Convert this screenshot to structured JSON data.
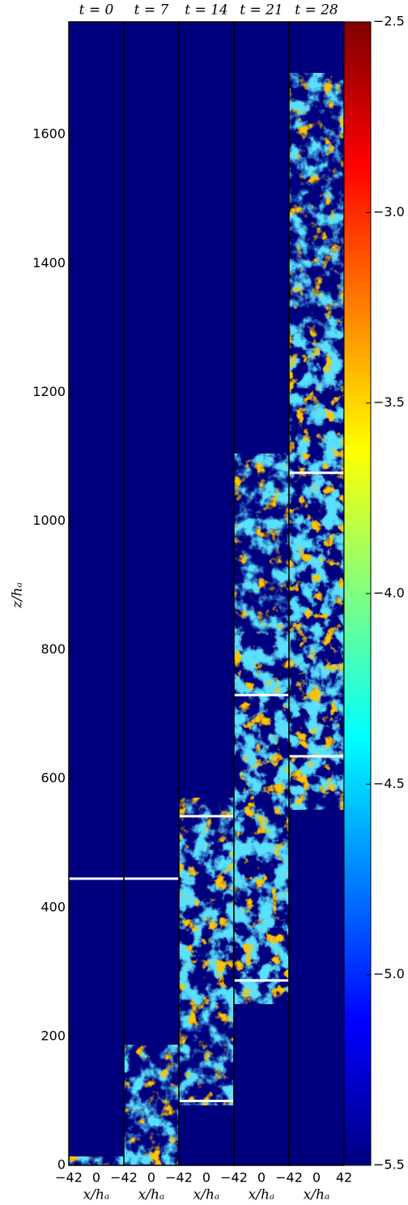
{
  "chart_data": {
    "type": "heatmap-panels",
    "ylabel": "z/hₐ",
    "ylim": [
      0,
      1775
    ],
    "yticks": [
      0,
      200,
      400,
      600,
      800,
      1000,
      1200,
      1400,
      1600
    ],
    "panels": [
      {
        "title": "t = 0",
        "xlabel": "x/hₐ",
        "xlim": [
          -42,
          42
        ],
        "xticks": [
          {
            "value": -42,
            "label": "−42"
          },
          0
        ],
        "markers": [
          445
        ]
      },
      {
        "title": "t = 7",
        "xlabel": "x/hₐ",
        "xlim": [
          -42,
          42
        ],
        "xticks": [
          {
            "value": -42,
            "label": "−42"
          },
          0
        ],
        "markers": [
          445
        ]
      },
      {
        "title": "t = 14",
        "xlabel": "x/hₐ",
        "xlim": [
          -42,
          42
        ],
        "xticks": [
          {
            "value": -42,
            "label": "−42"
          },
          0
        ],
        "markers": [
          542,
          100
        ]
      },
      {
        "title": "t = 21",
        "xlabel": "x/hₐ",
        "xlim": [
          -42,
          42
        ],
        "xticks": [
          {
            "value": -42,
            "label": "−42"
          },
          0
        ],
        "markers": [
          730,
          287
        ]
      },
      {
        "title": "t = 28",
        "xlabel": "x/hₐ",
        "xlim": [
          -42,
          42
        ],
        "xticks": [
          {
            "value": -42,
            "label": "−42"
          },
          0,
          42
        ],
        "markers": [
          1075,
          635
        ]
      }
    ],
    "colorbar": {
      "lim": [
        -5.5,
        -2.5
      ],
      "ticks": [
        {
          "value": -5.5,
          "label": "−5.5"
        },
        {
          "value": -5.0,
          "label": "−5.0"
        },
        {
          "value": -4.5,
          "label": "−4.5"
        },
        {
          "value": -4.0,
          "label": "−4.0"
        },
        {
          "value": -3.5,
          "label": "−3.5"
        },
        {
          "value": -3.0,
          "label": "−3.0"
        },
        {
          "value": -2.5,
          "label": "−2.5"
        }
      ]
    }
  }
}
